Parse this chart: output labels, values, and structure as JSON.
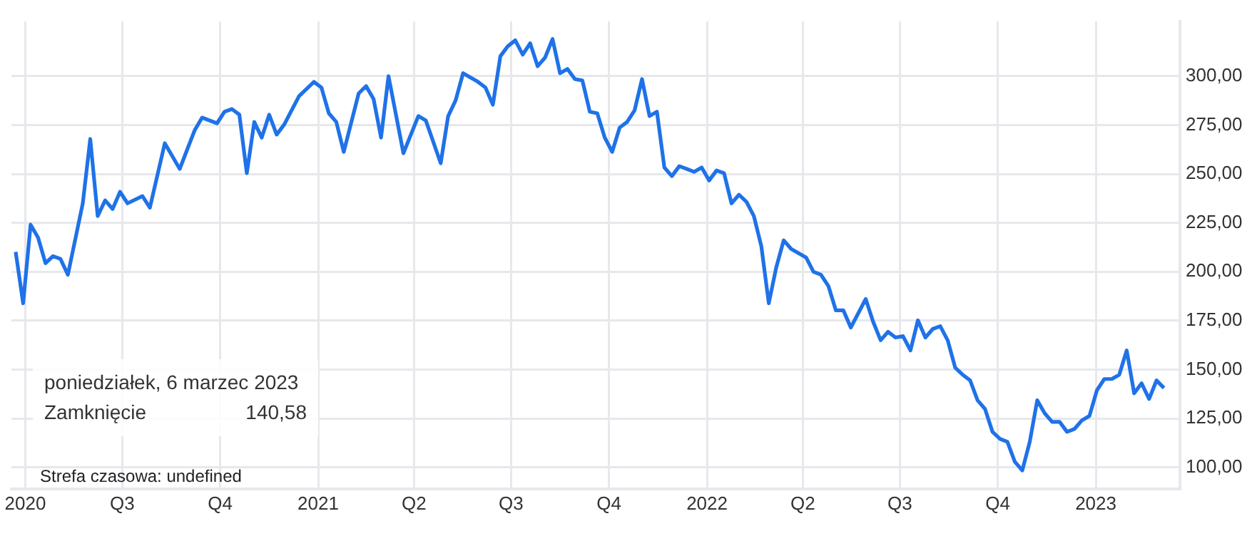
{
  "chart_data": {
    "type": "line",
    "color": "#1f72e8",
    "line_style": "solid",
    "marker": "none",
    "grid": true,
    "legend": false,
    "x": [
      "2020-03-23",
      "2020-03-30",
      "2020-04-06",
      "2020-04-13",
      "2020-04-20",
      "2020-04-27",
      "2020-05-04",
      "2020-05-11",
      "2020-05-25",
      "2020-06-01",
      "2020-06-08",
      "2020-06-15",
      "2020-06-22",
      "2020-06-29",
      "2020-07-06",
      "2020-07-20",
      "2020-07-27",
      "2020-08-10",
      "2020-08-24",
      "2020-09-07",
      "2020-09-14",
      "2020-09-28",
      "2020-10-05",
      "2020-10-12",
      "2020-10-19",
      "2020-10-26",
      "2020-11-02",
      "2020-11-09",
      "2020-11-16",
      "2020-11-23",
      "2020-11-30",
      "2020-12-14",
      "2020-12-28",
      "2021-01-04",
      "2021-01-11",
      "2021-01-18",
      "2021-01-25",
      "2021-02-08",
      "2021-02-15",
      "2021-02-22",
      "2021-03-01",
      "2021-03-08",
      "2021-03-22",
      "2021-04-05",
      "2021-04-12",
      "2021-04-26",
      "2021-05-03",
      "2021-05-10",
      "2021-05-17",
      "2021-05-31",
      "2021-06-07",
      "2021-06-14",
      "2021-06-21",
      "2021-06-28",
      "2021-07-05",
      "2021-07-12",
      "2021-07-19",
      "2021-07-26",
      "2021-08-02",
      "2021-08-09",
      "2021-08-16",
      "2021-08-23",
      "2021-08-30",
      "2021-09-06",
      "2021-09-13",
      "2021-09-20",
      "2021-09-27",
      "2021-10-04",
      "2021-10-11",
      "2021-10-18",
      "2021-10-25",
      "2021-11-01",
      "2021-11-08",
      "2021-11-15",
      "2021-11-22",
      "2021-11-29",
      "2021-12-06",
      "2021-12-13",
      "2021-12-20",
      "2021-12-27",
      "2022-01-03",
      "2022-01-10",
      "2022-01-17",
      "2022-01-24",
      "2022-01-31",
      "2022-02-07",
      "2022-02-14",
      "2022-02-21",
      "2022-02-28",
      "2022-03-07",
      "2022-03-14",
      "2022-03-21",
      "2022-03-28",
      "2022-04-04",
      "2022-04-11",
      "2022-04-18",
      "2022-04-25",
      "2022-05-02",
      "2022-05-09",
      "2022-05-16",
      "2022-05-23",
      "2022-05-30",
      "2022-06-06",
      "2022-06-13",
      "2022-06-20",
      "2022-06-27",
      "2022-07-04",
      "2022-07-11",
      "2022-07-18",
      "2022-07-25",
      "2022-08-01",
      "2022-08-08",
      "2022-08-15",
      "2022-08-22",
      "2022-08-29",
      "2022-09-05",
      "2022-09-12",
      "2022-09-19",
      "2022-09-26",
      "2022-10-03",
      "2022-10-10",
      "2022-10-17",
      "2022-10-24",
      "2022-10-31",
      "2022-11-07",
      "2022-11-14",
      "2022-11-21",
      "2022-11-28",
      "2022-12-05",
      "2022-12-12",
      "2022-12-19",
      "2022-12-26",
      "2023-01-02",
      "2023-01-09",
      "2023-01-16",
      "2023-01-23",
      "2023-01-30",
      "2023-02-06",
      "2023-02-13",
      "2023-02-20",
      "2023-02-27",
      "2023-03-06"
    ],
    "values": [
      210.2,
      183.9,
      224.1,
      217.5,
      204.4,
      208.0,
      206.6,
      198.5,
      235.0,
      267.9,
      228.5,
      236.5,
      232.1,
      240.9,
      235.0,
      238.7,
      232.8,
      265.7,
      252.6,
      272.3,
      278.8,
      275.9,
      281.8,
      283.2,
      280.3,
      250.4,
      276.6,
      268.6,
      280.3,
      270.1,
      275.2,
      289.8,
      297.1,
      294.2,
      281.0,
      276.6,
      261.3,
      291.2,
      294.9,
      288.3,
      268.6,
      300.0,
      260.6,
      279.6,
      277.4,
      255.5,
      279.6,
      287.6,
      301.5,
      297.1,
      294.2,
      285.4,
      310.2,
      315.3,
      318.3,
      311.0,
      316.8,
      305.1,
      309.5,
      319.0,
      301.5,
      303.7,
      298.5,
      297.8,
      281.8,
      281.0,
      268.6,
      261.3,
      273.7,
      276.6,
      282.5,
      298.5,
      279.6,
      281.8,
      253.3,
      248.9,
      254.0,
      252.6,
      251.1,
      253.3,
      246.7,
      251.8,
      250.4,
      235.0,
      239.4,
      235.8,
      228.5,
      213.1,
      183.9,
      202.2,
      216.1,
      211.7,
      209.5,
      207.3,
      200.0,
      198.5,
      192.7,
      180.3,
      180.3,
      171.5,
      178.8,
      186.1,
      174.4,
      165.0,
      169.3,
      166.4,
      167.1,
      159.8,
      175.2,
      166.4,
      170.8,
      172.2,
      164.9,
      151.0,
      147.4,
      144.5,
      134.3,
      129.9,
      118.2,
      114.6,
      113.1,
      102.9,
      98.5,
      113.1,
      134.3,
      127.7,
      123.3,
      123.3,
      118.2,
      119.7,
      124.1,
      126.3,
      139.4,
      145.2,
      145.2,
      147.4,
      159.8,
      137.9,
      143.0,
      135.0,
      144.5,
      140.58
    ],
    "xlim": [
      "2020-03-19",
      "2023-03-21"
    ],
    "xticks": [
      {
        "value": "2020-04-01",
        "label": "2020"
      },
      {
        "value": "2020-07-01",
        "label": "Q3"
      },
      {
        "value": "2020-10-01",
        "label": "Q4"
      },
      {
        "value": "2021-01-01",
        "label": "2021"
      },
      {
        "value": "2021-04-01",
        "label": "Q2"
      },
      {
        "value": "2021-07-01",
        "label": "Q3"
      },
      {
        "value": "2021-10-01",
        "label": "Q4"
      },
      {
        "value": "2022-01-01",
        "label": "2022"
      },
      {
        "value": "2022-04-01",
        "label": "Q2"
      },
      {
        "value": "2022-07-01",
        "label": "Q3"
      },
      {
        "value": "2022-10-01",
        "label": "Q4"
      },
      {
        "value": "2023-01-01",
        "label": "2023"
      }
    ],
    "ylim": [
      89,
      328
    ],
    "yticks": [
      {
        "value": 100,
        "label": "100,00"
      },
      {
        "value": 125,
        "label": "125,00"
      },
      {
        "value": 150,
        "label": "150,00"
      },
      {
        "value": 175,
        "label": "175,00"
      },
      {
        "value": 200,
        "label": "200,00"
      },
      {
        "value": 225,
        "label": "225,00"
      },
      {
        "value": 250,
        "label": "250,00"
      },
      {
        "value": 275,
        "label": "275,00"
      },
      {
        "value": 300,
        "label": "300,00"
      }
    ],
    "annotations": [
      "poniedziałek, 6 marzec 2023",
      "Zamknięcie",
      "140,58",
      "Strefa czasowa: undefined"
    ]
  }
}
